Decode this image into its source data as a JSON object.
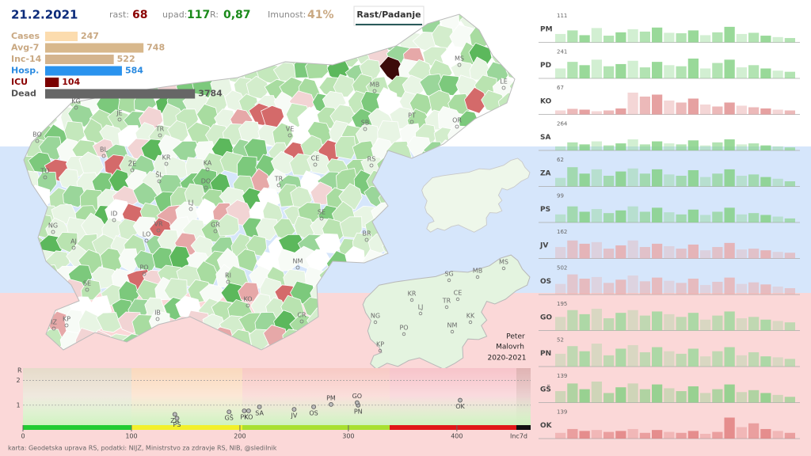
{
  "header": {
    "date": "21.2.2021",
    "growth_label": "rast:",
    "growth": "68",
    "decline_label": "upad:",
    "decline": "117",
    "r_label": "R:",
    "r": "0,87",
    "immunity_label": "Imunost:",
    "immunity": "41%",
    "toggle": "Rast/Padanje"
  },
  "stats": [
    {
      "name": "Cases",
      "value": 247,
      "color": "#fcdcae",
      "text_color": "#c9a882"
    },
    {
      "name": "Avg-7",
      "value": 748,
      "color": "#d8b88c",
      "text_color": "#c9a882"
    },
    {
      "name": "Inc-14",
      "value": 522,
      "color": "#d4b48e",
      "text_color": "#c9a882"
    },
    {
      "name": "Hosp.",
      "value": 584,
      "color": "#2a93ee",
      "text_color": "#2a8ae0"
    },
    {
      "name": "ICU",
      "value": 104,
      "color": "#7a0000",
      "text_color": "#8a0000"
    },
    {
      "name": "Dead",
      "value": 3784,
      "color": "#666666",
      "text_color": "#555555"
    }
  ],
  "map": {
    "labels": [
      "KG",
      "JE",
      "BO",
      "TR",
      "BL",
      "ŽE",
      "KR",
      "ŠL",
      "KA",
      "DO",
      "TO",
      "ID",
      "VR",
      "LJ",
      "LO",
      "GR",
      "NG",
      "AJ",
      "PO",
      "RI",
      "SE",
      "KO",
      "IB",
      "IZ",
      "KP",
      "CR",
      "NM",
      "BR",
      "SE",
      "TR",
      "CE",
      "VE",
      "SB",
      "RS",
      "MB",
      "PT",
      "OR",
      "MS",
      "LE"
    ],
    "inset_labels": [
      "SG",
      "MB",
      "MS",
      "KR",
      "CE",
      "TR",
      "LJ",
      "NG",
      "PO",
      "NM",
      "KK",
      "KP"
    ],
    "author": [
      "Peter",
      "Malovrh",
      "2020-2021"
    ]
  },
  "regions": [
    {
      "name": "PM",
      "max": 111,
      "color": "#7fd07f",
      "values": [
        35,
        50,
        30,
        60,
        28,
        42,
        55,
        45,
        62,
        40,
        38,
        50,
        30,
        42,
        65,
        35,
        40,
        28,
        22,
        18
      ]
    },
    {
      "name": "PD",
      "max": 241,
      "color": "#7fd07f",
      "values": [
        90,
        150,
        120,
        170,
        110,
        130,
        160,
        100,
        150,
        120,
        110,
        180,
        90,
        140,
        170,
        100,
        120,
        90,
        70,
        60
      ]
    },
    {
      "name": "KO",
      "max": 67,
      "color": "#e08a8a",
      "values": [
        10,
        14,
        12,
        8,
        10,
        15,
        55,
        45,
        50,
        35,
        30,
        40,
        25,
        20,
        30,
        22,
        18,
        15,
        12,
        10
      ]
    },
    {
      "name": "SA",
      "max": 264,
      "color": "#7fd07f",
      "values": [
        40,
        80,
        60,
        90,
        50,
        70,
        110,
        60,
        90,
        70,
        60,
        100,
        50,
        80,
        110,
        60,
        70,
        50,
        40,
        30
      ]
    },
    {
      "name": "ZA",
      "max": 62,
      "color": "#7fd07f",
      "values": [
        20,
        45,
        30,
        40,
        25,
        35,
        42,
        30,
        40,
        28,
        25,
        38,
        22,
        30,
        40,
        25,
        28,
        22,
        18,
        12
      ]
    },
    {
      "name": "PS",
      "max": 99,
      "color": "#7fd07f",
      "values": [
        30,
        60,
        40,
        50,
        35,
        45,
        60,
        40,
        55,
        38,
        30,
        48,
        28,
        40,
        55,
        30,
        35,
        28,
        22,
        15
      ]
    },
    {
      "name": "JV",
      "max": 162,
      "color": "#e8a8a8",
      "values": [
        70,
        110,
        90,
        100,
        60,
        80,
        110,
        70,
        90,
        75,
        60,
        85,
        50,
        70,
        95,
        55,
        60,
        50,
        40,
        35
      ]
    },
    {
      "name": "OS",
      "max": 502,
      "color": "#eab0b0",
      "values": [
        200,
        380,
        300,
        330,
        220,
        280,
        360,
        250,
        320,
        260,
        220,
        300,
        180,
        240,
        320,
        200,
        230,
        190,
        150,
        120
      ]
    },
    {
      "name": "GO",
      "max": 195,
      "color": "#9ad89a",
      "values": [
        100,
        150,
        120,
        160,
        90,
        130,
        150,
        110,
        140,
        120,
        100,
        130,
        80,
        110,
        140,
        90,
        100,
        80,
        70,
        60
      ]
    },
    {
      "name": "PN",
      "max": 52,
      "color": "#9ad89a",
      "values": [
        25,
        40,
        30,
        45,
        22,
        35,
        42,
        28,
        38,
        30,
        25,
        35,
        20,
        30,
        38,
        22,
        28,
        20,
        18,
        15
      ]
    },
    {
      "name": "GŠ",
      "max": 139,
      "color": "#7fd07f",
      "values": [
        60,
        100,
        70,
        110,
        50,
        80,
        100,
        70,
        95,
        75,
        60,
        85,
        50,
        70,
        95,
        55,
        65,
        50,
        40,
        30
      ]
    },
    {
      "name": "OK",
      "max": 139,
      "color": "#e07a7a",
      "values": [
        30,
        50,
        40,
        45,
        35,
        40,
        50,
        30,
        45,
        35,
        30,
        40,
        25,
        35,
        110,
        60,
        80,
        50,
        40,
        30
      ]
    }
  ],
  "scatter": {
    "y_label": "R",
    "x_label": "Inc7d",
    "xlim": [
      0,
      468
    ],
    "xticks": [
      0,
      100,
      200,
      300,
      400
    ],
    "ylim": [
      0,
      2.5
    ],
    "yticks": [
      1,
      2
    ],
    "points": [
      {
        "name": "ZA",
        "x": 140,
        "y": 0.63
      },
      {
        "name": "PS",
        "x": 142,
        "y": 0.47
      },
      {
        "name": "GŠ",
        "x": 190,
        "y": 0.73
      },
      {
        "name": "PK",
        "x": 204,
        "y": 0.77
      },
      {
        "name": "KO",
        "x": 208,
        "y": 0.77
      },
      {
        "name": "SA",
        "x": 218,
        "y": 0.93
      },
      {
        "name": "JV",
        "x": 250,
        "y": 0.83
      },
      {
        "name": "OS",
        "x": 268,
        "y": 0.93
      },
      {
        "name": "PM",
        "x": 284,
        "y": 1.03
      },
      {
        "name": "PN",
        "x": 309,
        "y": 1.0
      },
      {
        "name": "GO",
        "x": 308,
        "y": 1.1
      },
      {
        "name": "OK",
        "x": 403,
        "y": 1.2
      }
    ]
  },
  "footer": "karta: Geodetska uprava RS,  podatki: NIJZ, Ministrstvo za zdravje RS, NIB, @sledilnik"
}
